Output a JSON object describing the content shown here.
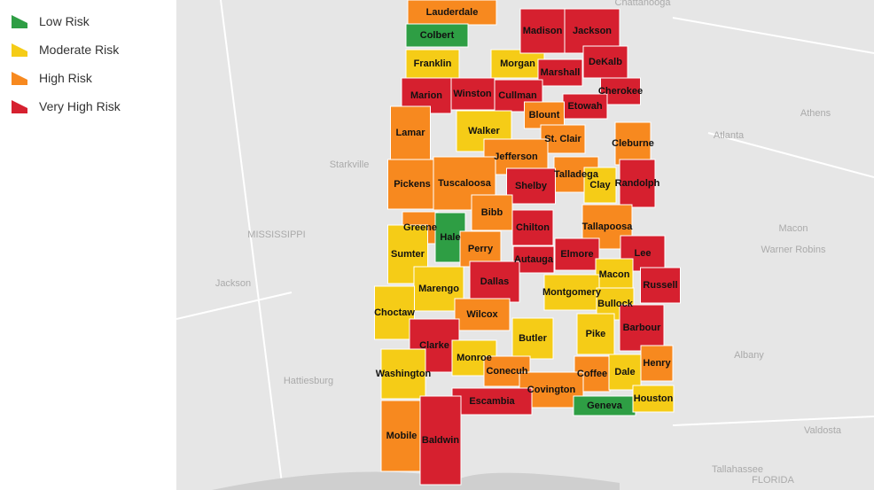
{
  "legend": [
    {
      "label": "Low Risk",
      "color": "#2e9e44"
    },
    {
      "label": "Moderate Risk",
      "color": "#f5cc17"
    },
    {
      "label": "High Risk",
      "color": "#f7891f"
    },
    {
      "label": "Very High Risk",
      "color": "#d6202f"
    }
  ],
  "counties": [
    {
      "name": "Lauderdale",
      "risk": "High Risk"
    },
    {
      "name": "Colbert",
      "risk": "Low Risk"
    },
    {
      "name": "Franklin",
      "risk": "Moderate Risk"
    },
    {
      "name": "Morgan",
      "risk": "Moderate Risk"
    },
    {
      "name": "Madison",
      "risk": "Very High Risk"
    },
    {
      "name": "Jackson",
      "risk": "Very High Risk"
    },
    {
      "name": "Marshall",
      "risk": "Very High Risk"
    },
    {
      "name": "DeKalb",
      "risk": "Very High Risk"
    },
    {
      "name": "Cherokee",
      "risk": "Very High Risk"
    },
    {
      "name": "Etowah",
      "risk": "Very High Risk"
    },
    {
      "name": "Cullman",
      "risk": "Very High Risk"
    },
    {
      "name": "Winston",
      "risk": "Very High Risk"
    },
    {
      "name": "Marion",
      "risk": "Very High Risk"
    },
    {
      "name": "Blount",
      "risk": "High Risk"
    },
    {
      "name": "Lamar",
      "risk": "High Risk"
    },
    {
      "name": "Walker",
      "risk": "Moderate Risk"
    },
    {
      "name": "St. Clair",
      "risk": "High Risk"
    },
    {
      "name": "Cleburne",
      "risk": "High Risk"
    },
    {
      "name": "Jefferson",
      "risk": "High Risk"
    },
    {
      "name": "Talladega",
      "risk": "High Risk"
    },
    {
      "name": "Clay",
      "risk": "Moderate Risk"
    },
    {
      "name": "Randolph",
      "risk": "Very High Risk"
    },
    {
      "name": "Pickens",
      "risk": "High Risk"
    },
    {
      "name": "Tuscaloosa",
      "risk": "High Risk"
    },
    {
      "name": "Shelby",
      "risk": "Very High Risk"
    },
    {
      "name": "Bibb",
      "risk": "High Risk"
    },
    {
      "name": "Chilton",
      "risk": "Very High Risk"
    },
    {
      "name": "Tallapoosa",
      "risk": "High Risk"
    },
    {
      "name": "Greene",
      "risk": "High Risk"
    },
    {
      "name": "Hale",
      "risk": "Low Risk"
    },
    {
      "name": "Perry",
      "risk": "High Risk"
    },
    {
      "name": "Sumter",
      "risk": "Moderate Risk"
    },
    {
      "name": "Autauga",
      "risk": "Very High Risk"
    },
    {
      "name": "Elmore",
      "risk": "Very High Risk"
    },
    {
      "name": "Lee",
      "risk": "Very High Risk"
    },
    {
      "name": "Russell",
      "risk": "Very High Risk"
    },
    {
      "name": "Macon",
      "risk": "Moderate Risk"
    },
    {
      "name": "Marengo",
      "risk": "Moderate Risk"
    },
    {
      "name": "Dallas",
      "risk": "Very High Risk"
    },
    {
      "name": "Montgomery",
      "risk": "Moderate Risk"
    },
    {
      "name": "Bullock",
      "risk": "Moderate Risk"
    },
    {
      "name": "Choctaw",
      "risk": "Moderate Risk"
    },
    {
      "name": "Wilcox",
      "risk": "High Risk"
    },
    {
      "name": "Clarke",
      "risk": "Very High Risk"
    },
    {
      "name": "Butler",
      "risk": "Moderate Risk"
    },
    {
      "name": "Pike",
      "risk": "Moderate Risk"
    },
    {
      "name": "Barbour",
      "risk": "Very High Risk"
    },
    {
      "name": "Monroe",
      "risk": "Moderate Risk"
    },
    {
      "name": "Conecuh",
      "risk": "High Risk"
    },
    {
      "name": "Coffee",
      "risk": "High Risk"
    },
    {
      "name": "Dale",
      "risk": "Moderate Risk"
    },
    {
      "name": "Henry",
      "risk": "High Risk"
    },
    {
      "name": "Washington",
      "risk": "Moderate Risk"
    },
    {
      "name": "Covington",
      "risk": "High Risk"
    },
    {
      "name": "Geneva",
      "risk": "Low Risk"
    },
    {
      "name": "Houston",
      "risk": "Moderate Risk"
    },
    {
      "name": "Escambia",
      "risk": "Very High Risk"
    },
    {
      "name": "Mobile",
      "risk": "High Risk"
    },
    {
      "name": "Baldwin",
      "risk": "Very High Risk"
    }
  ],
  "basemap_labels": [
    "Chattanooga",
    "Athens",
    "Atlanta",
    "Starkville",
    "MISSISSIPPI",
    "Jackson",
    "Macon",
    "Warner Robins",
    "Albany",
    "Hattiesburg",
    "Valdosta",
    "Tallahassee",
    "FLORIDA"
  ]
}
